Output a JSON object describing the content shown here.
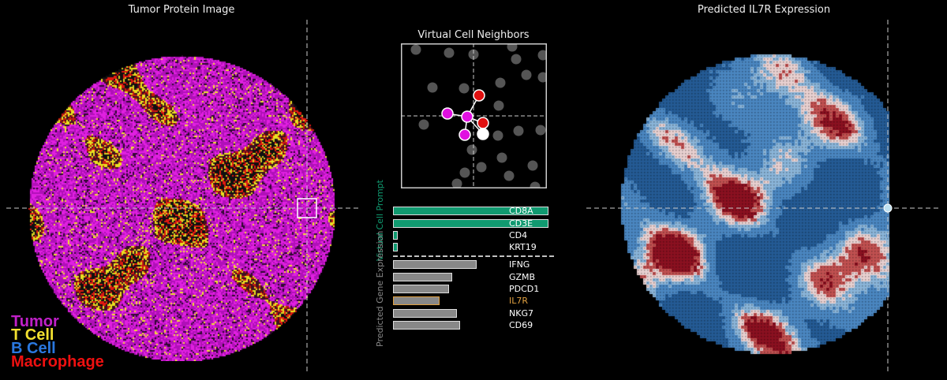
{
  "left_panel": {
    "title": "Tumor Protein Image"
  },
  "legend": [
    {
      "label": "Tumor",
      "color": "#c020c8"
    },
    {
      "label": "T Cell",
      "color": "#f2e030"
    },
    {
      "label": "B Cell",
      "color": "#2a78e0"
    },
    {
      "label": "Macrophage",
      "color": "#ee1010"
    }
  ],
  "neighbors_panel": {
    "title": "Virtual Cell Neighbors"
  },
  "right_panel": {
    "title": "Predicted IL7R Expression"
  },
  "chart_data": {
    "type": "bar",
    "orientation": "horizontal",
    "groups": [
      {
        "label": "Virtual Cell Prompt",
        "color": "#109a70",
        "categories": [
          "CD8A",
          "CD3E",
          "CD4",
          "KRT19"
        ],
        "values": [
          1.0,
          1.0,
          0.03,
          0.03
        ]
      },
      {
        "label": "Predicted Gene Expression",
        "color": "#888888",
        "categories": [
          "IFNG",
          "GZMB",
          "PDCD1",
          "IL7R",
          "NKG7",
          "CD69"
        ],
        "values": [
          0.54,
          0.38,
          0.36,
          0.3,
          0.41,
          0.43
        ],
        "highlight": "IL7R",
        "highlight_color": "#e0a040"
      }
    ]
  }
}
